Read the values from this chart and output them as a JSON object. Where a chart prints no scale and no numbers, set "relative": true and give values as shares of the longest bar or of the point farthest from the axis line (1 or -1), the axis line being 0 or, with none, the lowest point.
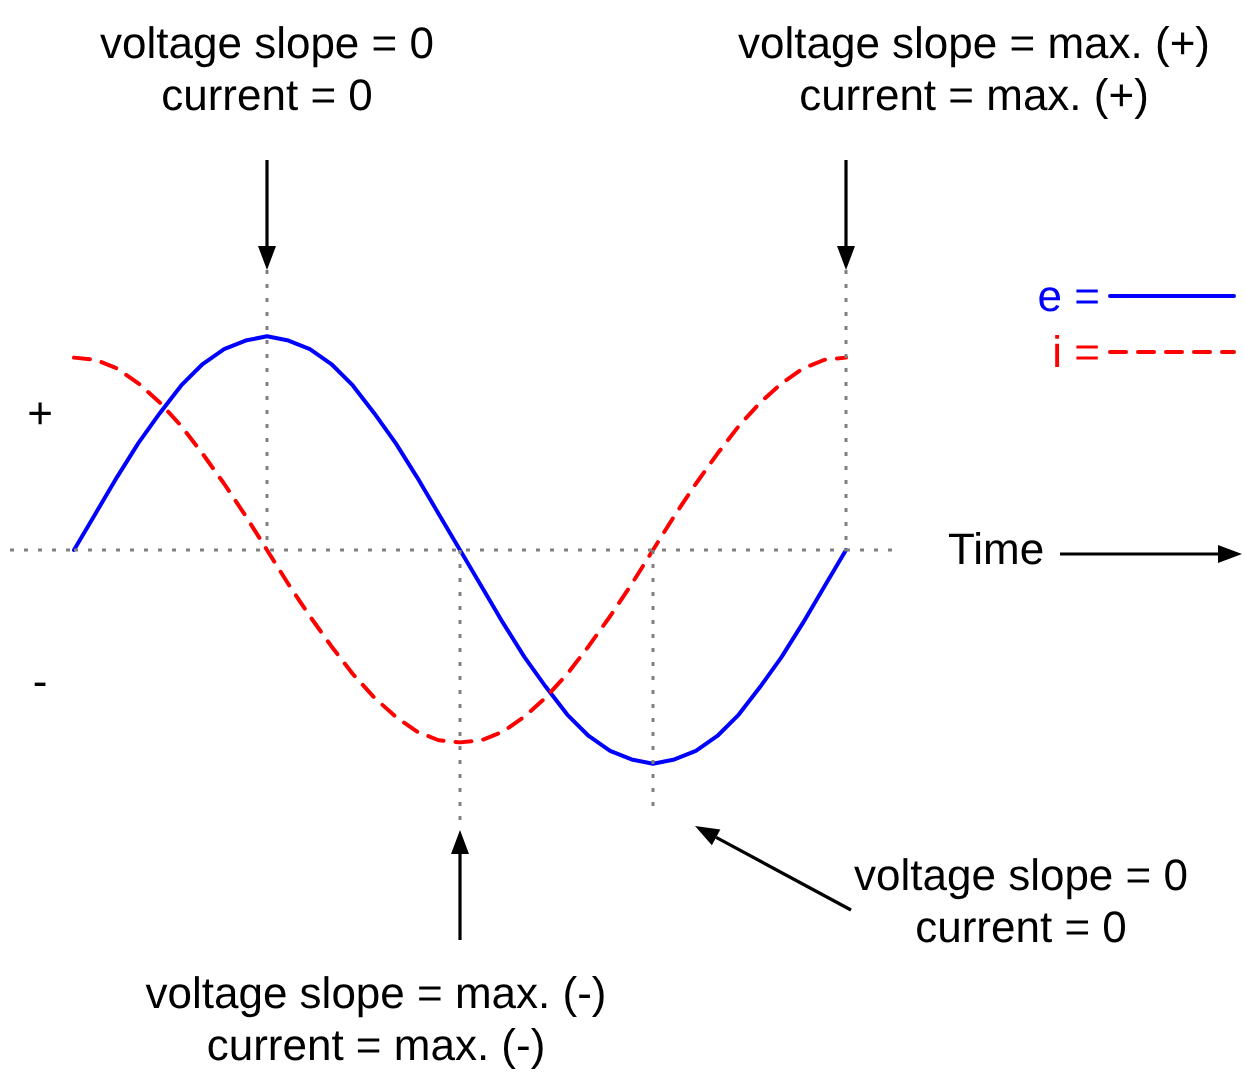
{
  "chart_data": {
    "type": "line",
    "relative": true,
    "xlabel": "Time",
    "grid": false,
    "legend": "top right",
    "marker": "none",
    "categories": [
      null,
      null,
      null,
      null,
      null,
      null,
      null,
      null,
      null,
      null,
      null,
      null,
      null,
      null,
      null,
      null,
      null,
      null,
      null,
      null,
      null,
      null,
      null,
      null,
      null,
      null,
      null,
      null,
      null,
      null,
      null,
      null,
      null,
      null,
      null,
      null,
      null
    ],
    "series": [
      {
        "name": "e =",
        "color": "#0000ff",
        "line_style": "solid",
        "values": [
          0,
          0.17,
          0.34,
          0.5,
          0.64,
          0.77,
          0.87,
          0.94,
          0.98,
          1,
          0.98,
          0.94,
          0.87,
          0.77,
          0.64,
          0.5,
          0.34,
          0.17,
          0,
          -0.17,
          -0.34,
          -0.5,
          -0.64,
          -0.77,
          -0.87,
          -0.94,
          -0.98,
          -1,
          -0.98,
          -0.94,
          -0.87,
          -0.77,
          -0.64,
          -0.5,
          -0.34,
          -0.17,
          0
        ]
      },
      {
        "name": "i =",
        "color": "#ff0000",
        "line_style": "dashed",
        "values": [
          0.9,
          0.89,
          0.85,
          0.78,
          0.69,
          0.58,
          0.45,
          0.31,
          0.16,
          0,
          -0.16,
          -0.31,
          -0.45,
          -0.58,
          -0.69,
          -0.78,
          -0.85,
          -0.89,
          -0.9,
          -0.89,
          -0.85,
          -0.78,
          -0.69,
          -0.58,
          -0.45,
          -0.31,
          -0.16,
          0,
          0.16,
          0.31,
          0.45,
          0.58,
          0.69,
          0.78,
          0.85,
          0.89,
          0.9
        ]
      }
    ],
    "ref_lines": [
      {
        "axis": "y",
        "value": 0,
        "color": "#808080",
        "line_style": "dotted"
      }
    ],
    "annotations": [
      "voltage slope = 0\ncurrent = 0",
      "voltage slope = max. (+)\ncurrent = max. (+)",
      "voltage slope = max. (-)\ncurrent = max. (-)",
      "voltage slope = 0\ncurrent = 0",
      "+",
      "-"
    ]
  }
}
